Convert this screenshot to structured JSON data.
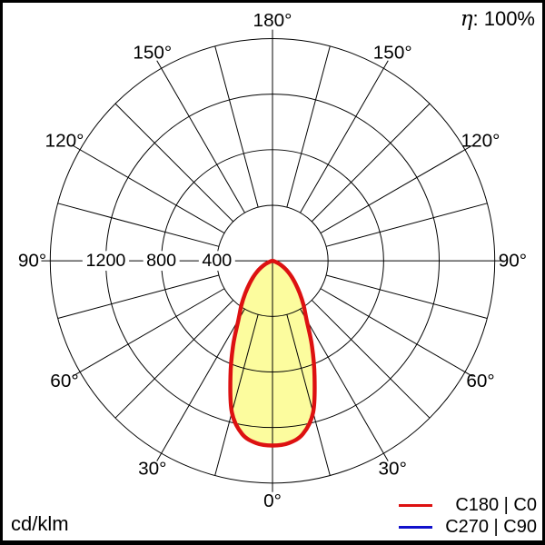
{
  "efficiency": {
    "symbol": "η",
    "text_after_symbol": ": 100%"
  },
  "unit_label": "cd/klm",
  "chart_data": {
    "type": "line",
    "coordinate_system": "polar",
    "description": "Luminous intensity distribution curve, 0° at bottom (nadir), 180° at top",
    "angular_axis": {
      "zero_position": "bottom",
      "grid_step_deg": 15,
      "label_step_deg": 30,
      "labels": [
        "0°",
        "30°",
        "60°",
        "90°",
        "120°",
        "150°",
        "180°"
      ]
    },
    "radial_axis": {
      "unit": "cd/klm",
      "ticks": [
        400,
        800,
        1200
      ],
      "tick_labels": [
        "400",
        "800",
        "1200"
      ],
      "max": 1600
    },
    "series": [
      {
        "name": "C180 | C0",
        "color": "#dd1111",
        "fill": "#fcfc9e",
        "symmetric": true,
        "angles_deg": [
          0,
          5,
          10,
          15,
          20,
          25,
          30,
          35,
          40,
          45,
          50,
          55,
          60,
          65,
          70,
          75,
          80,
          85,
          90
        ],
        "values_cd_klm": [
          1330,
          1318,
          1265,
          1130,
          885,
          670,
          490,
          390,
          305,
          235,
          180,
          135,
          95,
          60,
          30,
          12,
          4,
          1,
          0
        ]
      },
      {
        "name": "C270 | C90",
        "color": "#1111cc",
        "coincident_with": "C180 | C0"
      }
    ],
    "legend": {
      "position": "bottom-right",
      "items": [
        {
          "label": "C180 | C0",
          "color": "#dd1111"
        },
        {
          "label": "C270 | C90",
          "color": "#1111cc"
        }
      ]
    },
    "grid_color": "#000000",
    "background_color": "#ffffff"
  }
}
